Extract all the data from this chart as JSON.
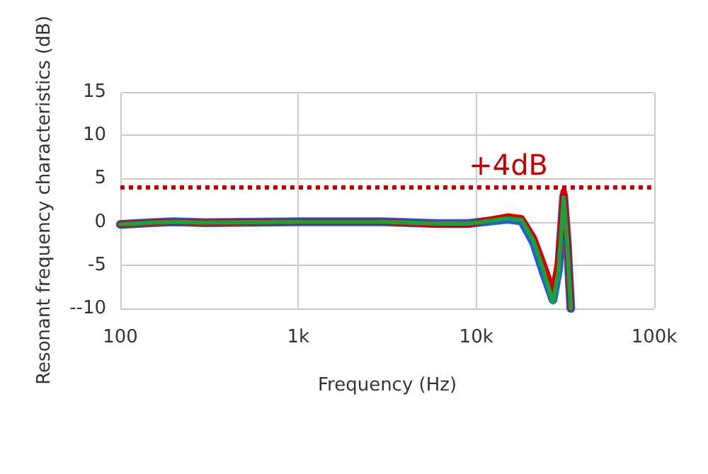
{
  "chart_data": {
    "type": "line",
    "xlabel": "Frequency (Hz)",
    "ylabel": "Resonant frequency characteristics (dB)",
    "x": [
      100,
      150,
      200,
      300,
      1000,
      3000,
      6000,
      9000,
      11000,
      15000,
      18000,
      21000,
      24000,
      27000,
      29000,
      31000,
      32500,
      34000
    ],
    "series": [
      {
        "color": "#2060d0",
        "values": [
          -0.3,
          -0.1,
          0,
          -0.1,
          0,
          0,
          -0.2,
          -0.2,
          0,
          0.3,
          0.1,
          -2.4,
          -6,
          -9,
          -5.5,
          3,
          -2.5,
          -10
        ]
      },
      {
        "color": "#d00000",
        "values": [
          -0.3,
          -0.1,
          0,
          -0.1,
          0,
          0,
          -0.3,
          -0.3,
          0.1,
          0.6,
          0.4,
          -1.8,
          -5,
          -8,
          -4.5,
          3.5,
          -2,
          -10
        ]
      },
      {
        "color": "#1aa040",
        "values": [
          -0.3,
          -0.1,
          0,
          -0.1,
          0,
          0,
          -0.2,
          -0.2,
          0,
          0.4,
          0.2,
          -2.2,
          -5.8,
          -9.3,
          -5.8,
          2.8,
          -2.8,
          -10
        ]
      }
    ],
    "log": "x",
    "xlim": [
      100,
      100000
    ],
    "xticks": [
      {
        "value": 100,
        "label": "100"
      },
      {
        "value": 1000,
        "label": "1k"
      },
      {
        "value": 10000,
        "label": "10k"
      },
      {
        "value": 100000,
        "label": "100k"
      }
    ],
    "ylim": [
      -10,
      15
    ],
    "yticks": [
      {
        "value": -10,
        "label": "--10"
      },
      -5,
      0,
      5,
      10,
      15
    ],
    "ref_lines": [
      {
        "axis": "y",
        "value": 4,
        "label": "+4dB",
        "color": "#c00000",
        "line_style": "dotted"
      }
    ],
    "grid": true,
    "marker": "none",
    "line_style": "solid"
  }
}
